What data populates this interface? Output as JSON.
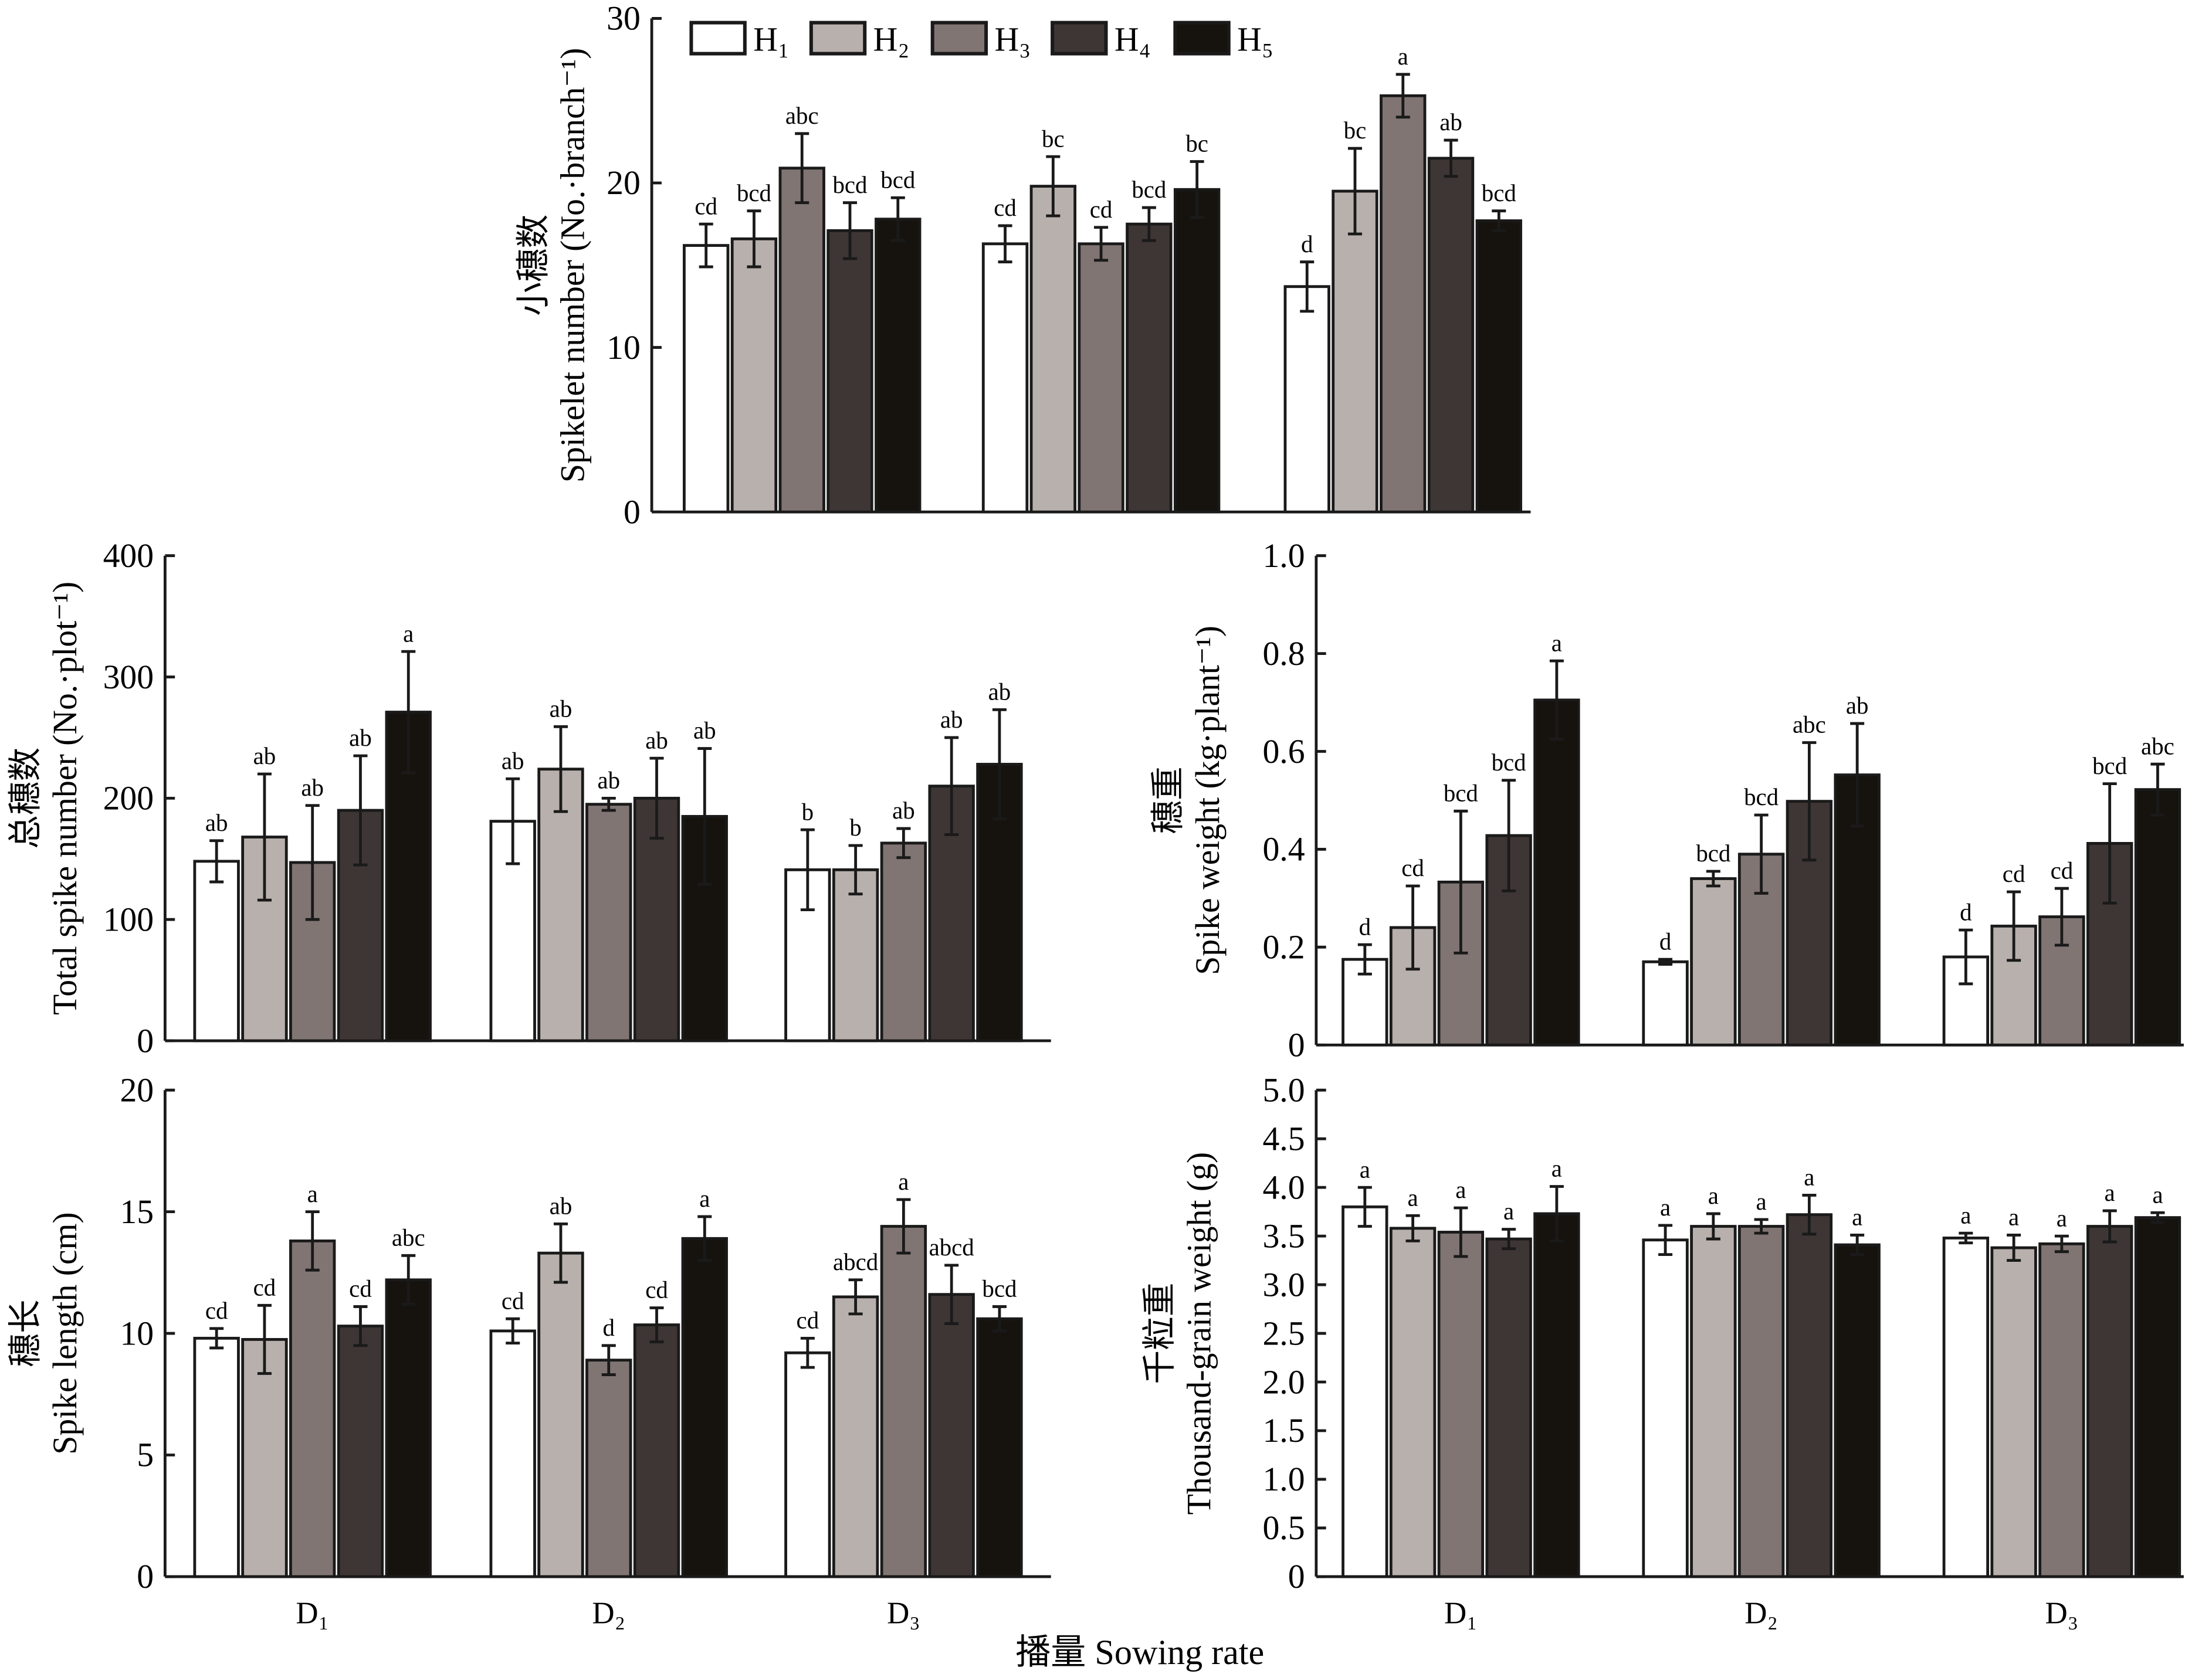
{
  "colors": {
    "H1": "#ffffff",
    "H2": "#b8b0ac",
    "H3": "#807573",
    "H4": "#3e3634",
    "H5": "#16130f",
    "stroke": "#1a1a1a"
  },
  "legend": [
    "H₁",
    "H₂",
    "H₃",
    "H₄",
    "H₅"
  ],
  "categories": [
    "D₁",
    "D₂",
    "D₃"
  ],
  "xlabel": "播量 Sowing rate",
  "chart_data": [
    {
      "type": "bar",
      "id": "spikelet",
      "ylabel_cn": "小穗数",
      "ylabel": "Spikelet number (No.·branch⁻¹)",
      "ylim": [
        0,
        30
      ],
      "yticks": [
        "0",
        "10",
        "20",
        "30"
      ],
      "series": [
        {
          "name": "H₁",
          "values": [
            16.2,
            16.3,
            13.7
          ],
          "errors": [
            1.3,
            1.1,
            1.5
          ],
          "letters": [
            "cd",
            "cd",
            "d"
          ]
        },
        {
          "name": "H₂",
          "values": [
            16.6,
            19.8,
            19.5
          ],
          "errors": [
            1.7,
            1.8,
            2.6
          ],
          "letters": [
            "bcd",
            "bc",
            "bc"
          ]
        },
        {
          "name": "H₃",
          "values": [
            20.9,
            16.3,
            25.3
          ],
          "errors": [
            2.1,
            1.0,
            1.3
          ],
          "letters": [
            "abc",
            "cd",
            "a"
          ]
        },
        {
          "name": "H₄",
          "values": [
            17.1,
            17.5,
            21.5
          ],
          "errors": [
            1.7,
            1.0,
            1.1
          ],
          "letters": [
            "bcd",
            "bcd",
            "ab"
          ]
        },
        {
          "name": "H₅",
          "values": [
            17.8,
            19.6,
            17.7
          ],
          "errors": [
            1.3,
            1.7,
            0.6
          ],
          "letters": [
            "bcd",
            "bc",
            "bcd"
          ]
        }
      ]
    },
    {
      "type": "bar",
      "id": "total-spike",
      "ylabel_cn": "总穗数",
      "ylabel": "Total spike number (No.·plot⁻¹)",
      "ylim": [
        0,
        400
      ],
      "yticks": [
        "0",
        "100",
        "200",
        "300",
        "400"
      ],
      "series": [
        {
          "name": "H₁",
          "values": [
            148,
            181,
            141
          ],
          "errors": [
            17,
            35,
            33
          ],
          "letters": [
            "ab",
            "ab",
            "b"
          ]
        },
        {
          "name": "H₂",
          "values": [
            168,
            224,
            141
          ],
          "errors": [
            52,
            35,
            20
          ],
          "letters": [
            "ab",
            "ab",
            "b"
          ]
        },
        {
          "name": "H₃",
          "values": [
            147,
            195,
            163
          ],
          "errors": [
            47,
            5,
            12
          ],
          "letters": [
            "ab",
            "ab",
            "ab"
          ]
        },
        {
          "name": "H₄",
          "values": [
            190,
            200,
            210
          ],
          "errors": [
            45,
            33,
            40
          ],
          "letters": [
            "ab",
            "ab",
            "ab"
          ]
        },
        {
          "name": "H₅",
          "values": [
            271,
            185,
            228
          ],
          "errors": [
            50,
            56,
            45
          ],
          "letters": [
            "a",
            "ab",
            "ab"
          ]
        }
      ]
    },
    {
      "type": "bar",
      "id": "spike-weight",
      "ylabel_cn": "穗重",
      "ylabel": "Spike weight (kg·plant⁻¹)",
      "ylim": [
        0,
        1.0
      ],
      "yticks": [
        "0",
        "0.2",
        "0.4",
        "0.6",
        "0.8",
        "1.0"
      ],
      "series": [
        {
          "name": "H₁",
          "values": [
            0.175,
            0.17,
            0.18
          ],
          "errors": [
            0.03,
            0.005,
            0.055
          ],
          "letters": [
            "d",
            "d",
            "d"
          ]
        },
        {
          "name": "H₂",
          "values": [
            0.24,
            0.34,
            0.243
          ],
          "errors": [
            0.085,
            0.015,
            0.07
          ],
          "letters": [
            "cd",
            "bcd",
            "cd"
          ]
        },
        {
          "name": "H₃",
          "values": [
            0.333,
            0.39,
            0.262
          ],
          "errors": [
            0.145,
            0.08,
            0.058
          ],
          "letters": [
            "bcd",
            "bcd",
            "cd"
          ]
        },
        {
          "name": "H₄",
          "values": [
            0.428,
            0.498,
            0.412
          ],
          "errors": [
            0.113,
            0.12,
            0.122
          ],
          "letters": [
            "bcd",
            "abc",
            "bcd"
          ]
        },
        {
          "name": "H₅",
          "values": [
            0.705,
            0.552,
            0.522
          ],
          "errors": [
            0.08,
            0.105,
            0.052
          ],
          "letters": [
            "a",
            "ab",
            "abc"
          ]
        }
      ]
    },
    {
      "type": "bar",
      "id": "spike-length",
      "ylabel_cn": "穗长",
      "ylabel": "Spike length (cm)",
      "ylim": [
        0,
        20
      ],
      "yticks": [
        "0",
        "5",
        "10",
        "15",
        "20"
      ],
      "series": [
        {
          "name": "H₁",
          "values": [
            9.8,
            10.1,
            9.2
          ],
          "errors": [
            0.4,
            0.5,
            0.6
          ],
          "letters": [
            "cd",
            "cd",
            "cd"
          ]
        },
        {
          "name": "H₂",
          "values": [
            9.75,
            13.3,
            11.5
          ],
          "errors": [
            1.4,
            1.2,
            0.7
          ],
          "letters": [
            "cd",
            "ab",
            "abcd"
          ]
        },
        {
          "name": "H₃",
          "values": [
            13.8,
            8.9,
            14.4
          ],
          "errors": [
            1.2,
            0.6,
            1.1
          ],
          "letters": [
            "a",
            "d",
            "a"
          ]
        },
        {
          "name": "H₄",
          "values": [
            10.3,
            10.35,
            11.6
          ],
          "errors": [
            0.8,
            0.7,
            1.2
          ],
          "letters": [
            "cd",
            "cd",
            "abcd"
          ]
        },
        {
          "name": "H₅",
          "values": [
            12.2,
            13.9,
            10.6
          ],
          "errors": [
            1.0,
            0.9,
            0.5
          ],
          "letters": [
            "abc",
            "a",
            "bcd"
          ]
        }
      ]
    },
    {
      "type": "bar",
      "id": "thousand-grain",
      "ylabel_cn": "千粒重",
      "ylabel": "Thousand-grain weight (g)",
      "ylim": [
        0,
        5.0
      ],
      "yticks": [
        "0",
        "0.5",
        "1.0",
        "1.5",
        "2.0",
        "2.5",
        "3.0",
        "3.5",
        "4.0",
        "4.5",
        "5.0"
      ],
      "series": [
        {
          "name": "H₁",
          "values": [
            3.8,
            3.46,
            3.48
          ],
          "errors": [
            0.2,
            0.15,
            0.05
          ],
          "letters": [
            "a",
            "a",
            "a"
          ]
        },
        {
          "name": "H₂",
          "values": [
            3.58,
            3.6,
            3.38
          ],
          "errors": [
            0.13,
            0.13,
            0.13
          ],
          "letters": [
            "a",
            "a",
            "a"
          ]
        },
        {
          "name": "H₃",
          "values": [
            3.54,
            3.6,
            3.42
          ],
          "errors": [
            0.25,
            0.07,
            0.08
          ],
          "letters": [
            "a",
            "a",
            "a"
          ]
        },
        {
          "name": "H₄",
          "values": [
            3.47,
            3.72,
            3.6
          ],
          "errors": [
            0.1,
            0.2,
            0.16
          ],
          "letters": [
            "a",
            "a",
            "a"
          ]
        },
        {
          "name": "H₅",
          "values": [
            3.73,
            3.41,
            3.69
          ],
          "errors": [
            0.28,
            0.1,
            0.05
          ],
          "letters": [
            "a",
            "a",
            "a"
          ]
        }
      ]
    }
  ]
}
